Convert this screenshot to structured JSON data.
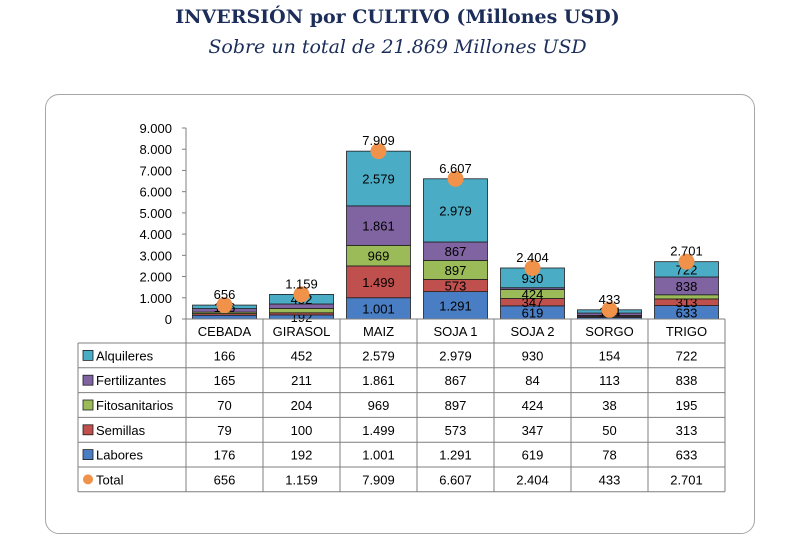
{
  "title": "INVERSIÓN por CULTIVO (Millones USD)",
  "subtitle": "Sobre un total de 21.869 Millones USD",
  "chart_data": {
    "type": "bar",
    "stacked": true,
    "categories": [
      "CEBADA",
      "GIRASOL",
      "MAIZ",
      "SOJA 1",
      "SOJA 2",
      "SORGO",
      "TRIGO"
    ],
    "y_ticks": [
      "0",
      "1.000",
      "2.000",
      "3.000",
      "4.000",
      "5.000",
      "6.000",
      "7.000",
      "8.000",
      "9.000"
    ],
    "ylim": [
      0,
      9000
    ],
    "legend_position": "data table below chart",
    "series": [
      {
        "name": "Labores",
        "color": "#4a7ec4",
        "values": [
          176,
          192,
          1001,
          1291,
          619,
          78,
          633
        ],
        "labels": [
          "176",
          "192",
          "1.001",
          "1.291",
          "619",
          "78",
          "633"
        ]
      },
      {
        "name": "Semillas",
        "color": "#c0504d",
        "values": [
          79,
          100,
          1499,
          573,
          347,
          50,
          313
        ],
        "labels": [
          "79",
          "100",
          "1.499",
          "573",
          "347",
          "50",
          "313"
        ]
      },
      {
        "name": "Fitosanitarios",
        "color": "#9bbb59",
        "values": [
          70,
          204,
          969,
          897,
          424,
          38,
          195
        ],
        "labels": [
          "70",
          "204",
          "969",
          "897",
          "424",
          "38",
          "195"
        ]
      },
      {
        "name": "Fertilizantes",
        "color": "#8064a2",
        "values": [
          165,
          211,
          1861,
          867,
          84,
          113,
          838
        ],
        "labels": [
          "165",
          "211",
          "1.861",
          "867",
          "84",
          "113",
          "838"
        ]
      },
      {
        "name": "Alquileres",
        "color": "#4bacc6",
        "values": [
          166,
          452,
          2579,
          2979,
          930,
          154,
          722
        ],
        "labels": [
          "166",
          "452",
          "2.579",
          "2.979",
          "930",
          "154",
          "722"
        ]
      }
    ],
    "total": {
      "name": "Total",
      "color": "#f0924a",
      "values": [
        656,
        1159,
        7909,
        6607,
        2404,
        433,
        2701
      ],
      "labels": [
        "656",
        "1.159",
        "7.909",
        "6.607",
        "2.404",
        "433",
        "2.701"
      ]
    },
    "bar_labels": {
      "Labores": [
        "",
        "192",
        "1.001",
        "1.291",
        "619",
        "",
        "633"
      ],
      "Semillas": [
        "",
        "",
        "1.499",
        "573",
        "347",
        "",
        "313"
      ],
      "Fitosanitarios": [
        "",
        "",
        "969",
        "897",
        "424",
        "",
        ""
      ],
      "Fertilizantes": [
        "",
        "",
        "1.861",
        "867",
        "",
        "",
        "838"
      ],
      "Alquileres": [
        "166",
        "452",
        "2.579",
        "2.979",
        "930",
        "154",
        "722"
      ]
    },
    "table_rows": [
      "Alquileres",
      "Fertilizantes",
      "Fitosanitarios",
      "Semillas",
      "Labores",
      "Total"
    ]
  }
}
